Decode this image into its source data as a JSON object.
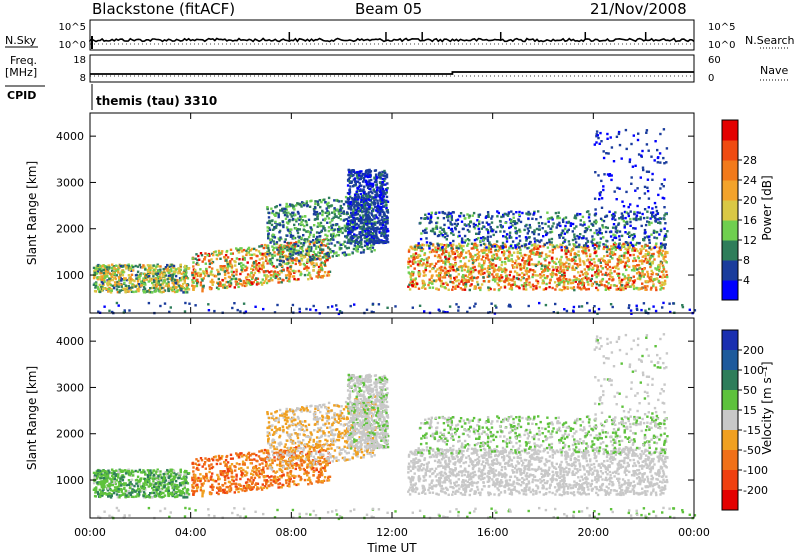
{
  "header": {
    "title": "Blackstone (fitACF)",
    "beam": "Beam 05",
    "date": "21/Nov/2008"
  },
  "top_panels": {
    "nsky_label": "N.Sky",
    "nsky_ticks": [
      "10^5",
      "10^0"
    ],
    "nsearch_label": "N.Search",
    "nsearch_ticks": [
      "10^5",
      "10^0"
    ],
    "freq_label": "Freq.",
    "freq_unit": "[MHz]",
    "freq_ticks": [
      "18",
      "8"
    ],
    "nave_label": "Nave",
    "nave_ticks": [
      "60",
      "0"
    ],
    "cpid_label": "CPID",
    "cpid_value": "themis (tau) 3310"
  },
  "chart_data": [
    {
      "type": "heatmap",
      "name": "power-panel",
      "xlabel": "",
      "ylabel": "Slant Range [km]",
      "y_ticks": [
        "1000",
        "2000",
        "3000",
        "4000"
      ],
      "ylim": [
        180,
        4500
      ],
      "xlim": [
        0,
        24
      ],
      "colorbar_label": "Power [dB]",
      "colorbar_ticks": [
        "4",
        "8",
        "12",
        "16",
        "20",
        "24",
        "28"
      ],
      "colorbar_colors": [
        "#0000ff",
        "#1a3c9c",
        "#2e7d5a",
        "#6fcf4f",
        "#d9c845",
        "#f3a32b",
        "#f27a1b",
        "#ef4b11",
        "#e30000"
      ]
    },
    {
      "type": "heatmap",
      "name": "velocity-panel",
      "xlabel": "Time UT",
      "x_ticks": [
        "00:00",
        "04:00",
        "08:00",
        "12:00",
        "16:00",
        "20:00",
        "00:00"
      ],
      "ylabel": "Slant Range [km]",
      "y_ticks": [
        "1000",
        "2000",
        "3000",
        "4000"
      ],
      "ylim": [
        180,
        4500
      ],
      "xlim": [
        0,
        24
      ],
      "colorbar_label": "Velocity [m s⁻¹]",
      "colorbar_ticks": [
        "200",
        "100",
        "50",
        "15",
        "-15",
        "-50",
        "-100",
        "-200"
      ],
      "colorbar_colors": [
        "#1a2fb0",
        "#1e5a9c",
        "#2e7d5a",
        "#5ec23c",
        "#c8c8c8",
        "#f0a020",
        "#f07018",
        "#ef4010",
        "#e30000"
      ]
    }
  ]
}
